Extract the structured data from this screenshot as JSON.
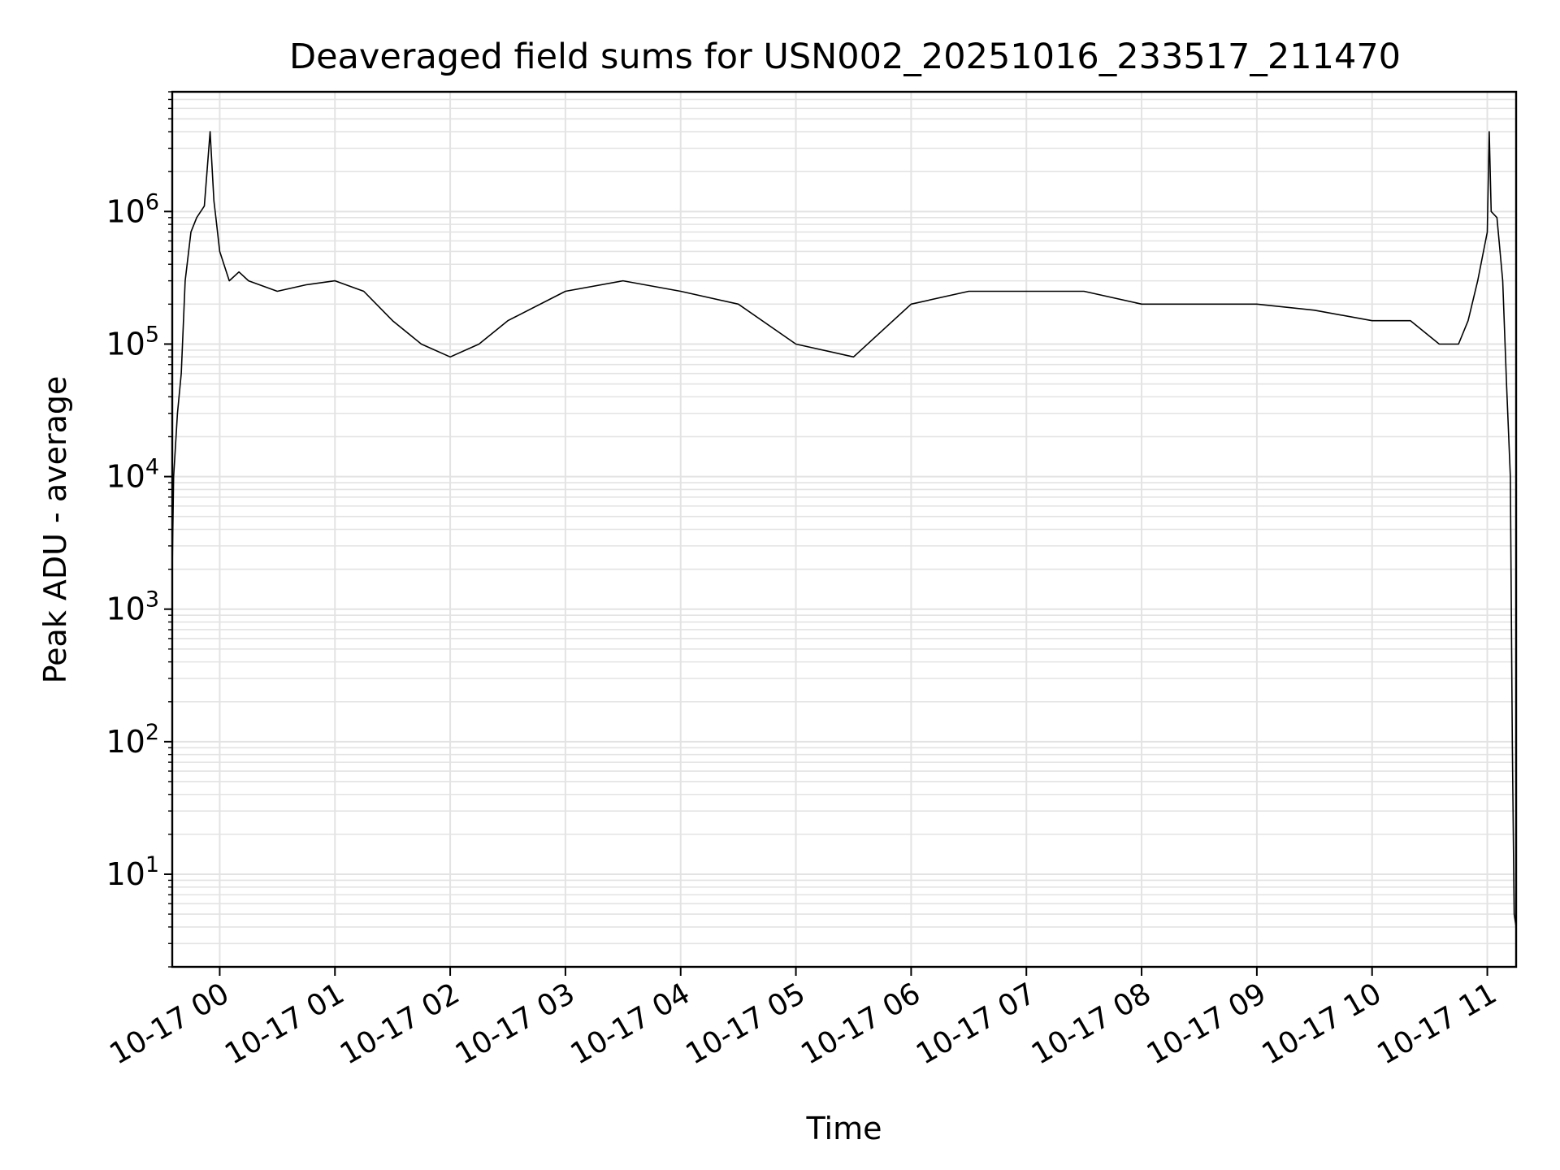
{
  "chart_data": {
    "type": "line",
    "title": "Deaveraged field sums for USN002_20251016_233517_211470",
    "xlabel": "Time",
    "ylabel": "Peak ADU - average",
    "yscale": "log",
    "ylim": [
      2,
      8000000
    ],
    "xlim": [
      "2025-10-16 23:35:17",
      "2025-10-17 11:15:00"
    ],
    "grid": true,
    "x_ticks": [
      "10-17 00",
      "10-17 01",
      "10-17 02",
      "10-17 03",
      "10-17 04",
      "10-17 05",
      "10-17 06",
      "10-17 07",
      "10-17 08",
      "10-17 09",
      "10-17 10",
      "10-17 11"
    ],
    "y_ticks": [
      {
        "value": 10,
        "base": "10",
        "exp": "1"
      },
      {
        "value": 100,
        "base": "10",
        "exp": "2"
      },
      {
        "value": 1000,
        "base": "10",
        "exp": "3"
      },
      {
        "value": 10000,
        "base": "10",
        "exp": "4"
      },
      {
        "value": 100000,
        "base": "10",
        "exp": "5"
      },
      {
        "value": 1000000,
        "base": "10",
        "exp": "6"
      }
    ],
    "line_color": "#000000",
    "series": [
      {
        "x": [
          "2025-10-16 23:35:17",
          "2025-10-16 23:36",
          "2025-10-16 23:38",
          "2025-10-16 23:40",
          "2025-10-16 23:42",
          "2025-10-16 23:45",
          "2025-10-16 23:48",
          "2025-10-16 23:52",
          "2025-10-16 23:55",
          "2025-10-16 23:57",
          "2025-10-16 23:58",
          "2025-10-17 00:00",
          "2025-10-17 00:05",
          "2025-10-17 00:10",
          "2025-10-17 00:15",
          "2025-10-17 00:30",
          "2025-10-17 00:45",
          "2025-10-17 01:00",
          "2025-10-17 01:15",
          "2025-10-17 01:30",
          "2025-10-17 01:45",
          "2025-10-17 02:00",
          "2025-10-17 02:15",
          "2025-10-17 02:30",
          "2025-10-17 03:00",
          "2025-10-17 03:30",
          "2025-10-17 04:00",
          "2025-10-17 04:30",
          "2025-10-17 05:00",
          "2025-10-17 05:30",
          "2025-10-17 06:00",
          "2025-10-17 06:30",
          "2025-10-17 07:00",
          "2025-10-17 07:30",
          "2025-10-17 08:00",
          "2025-10-17 08:30",
          "2025-10-17 09:00",
          "2025-10-17 09:30",
          "2025-10-17 10:00",
          "2025-10-17 10:20",
          "2025-10-17 10:35",
          "2025-10-17 10:45",
          "2025-10-17 10:50",
          "2025-10-17 10:55",
          "2025-10-17 11:00",
          "2025-10-17 11:01",
          "2025-10-17 11:02",
          "2025-10-17 11:05",
          "2025-10-17 11:08",
          "2025-10-17 11:10",
          "2025-10-17 11:12",
          "2025-10-17 11:13",
          "2025-10-17 11:14",
          "2025-10-17 11:15"
        ],
        "y": [
          2000,
          10000,
          30000,
          60000,
          300000,
          700000,
          900000,
          1100000,
          4000000,
          1200000,
          900000,
          500000,
          300000,
          350000,
          300000,
          250000,
          280000,
          300000,
          250000,
          150000,
          100000,
          80000,
          100000,
          150000,
          250000,
          300000,
          250000,
          200000,
          100000,
          80000,
          200000,
          250000,
          250000,
          250000,
          200000,
          200000,
          200000,
          180000,
          150000,
          150000,
          100000,
          100000,
          150000,
          300000,
          700000,
          4000000,
          1000000,
          900000,
          300000,
          50000,
          10000,
          100,
          5,
          4
        ]
      }
    ]
  }
}
